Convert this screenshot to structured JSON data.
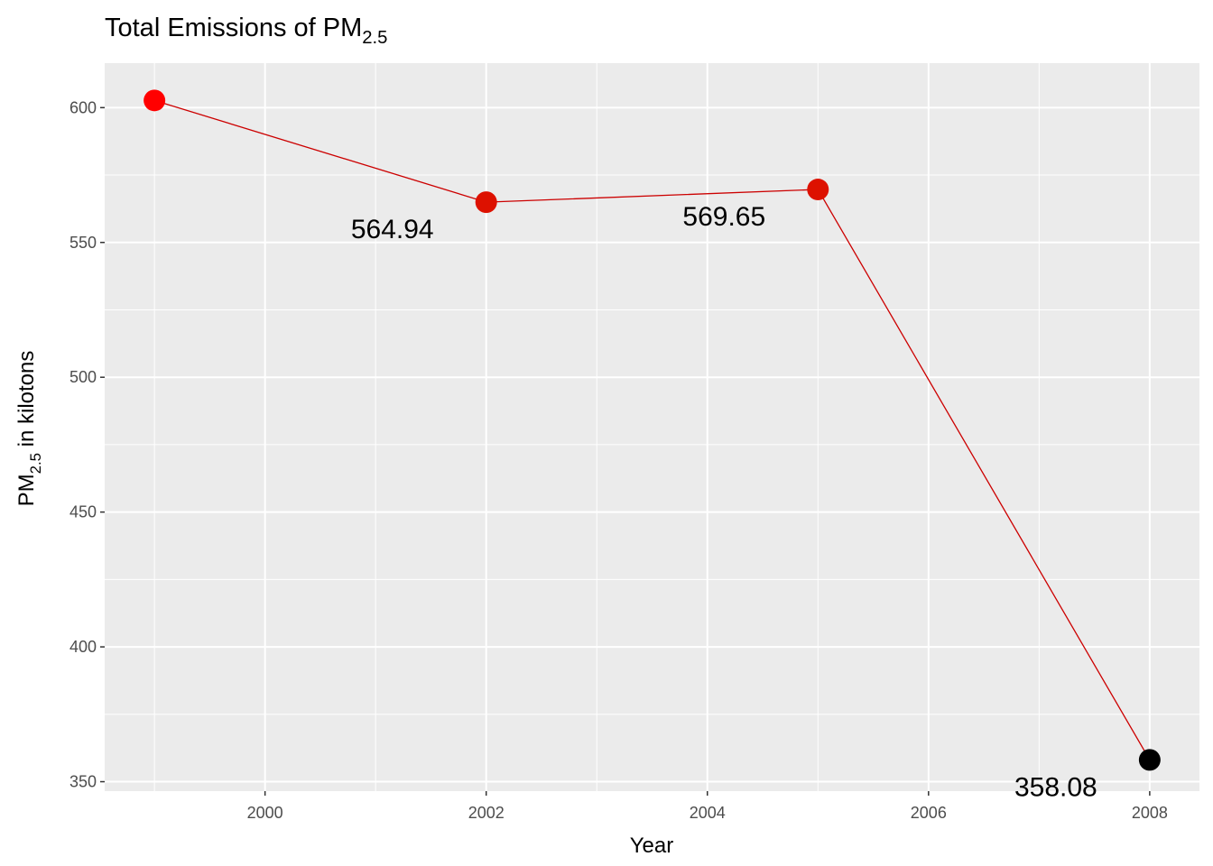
{
  "chart_data": {
    "type": "line",
    "title": {
      "main": "Total Emissions of PM",
      "subscript": "2.5"
    },
    "xlabel": "Year",
    "ylabel": {
      "pre": "PM",
      "subscript": "2.5",
      "post": " in kilotons"
    },
    "x": [
      1999,
      2002,
      2005,
      2008
    ],
    "y": [
      602.67,
      564.94,
      569.65,
      358.08
    ],
    "point_colors": [
      "#ff0000",
      "#dd1100",
      "#dd1100",
      "#000000"
    ],
    "line_color": "#cc0000",
    "data_labels": [
      "",
      "564.94",
      "569.65",
      "358.08"
    ],
    "xlim": [
      1998.55,
      2008.45
    ],
    "ylim": [
      346.5,
      616.5
    ],
    "x_ticks": [
      2000,
      2002,
      2004,
      2006,
      2008
    ],
    "y_ticks": [
      350,
      400,
      450,
      500,
      550,
      600
    ],
    "grid": true,
    "background": "#ebebeb",
    "grid_color": "#ffffff"
  }
}
